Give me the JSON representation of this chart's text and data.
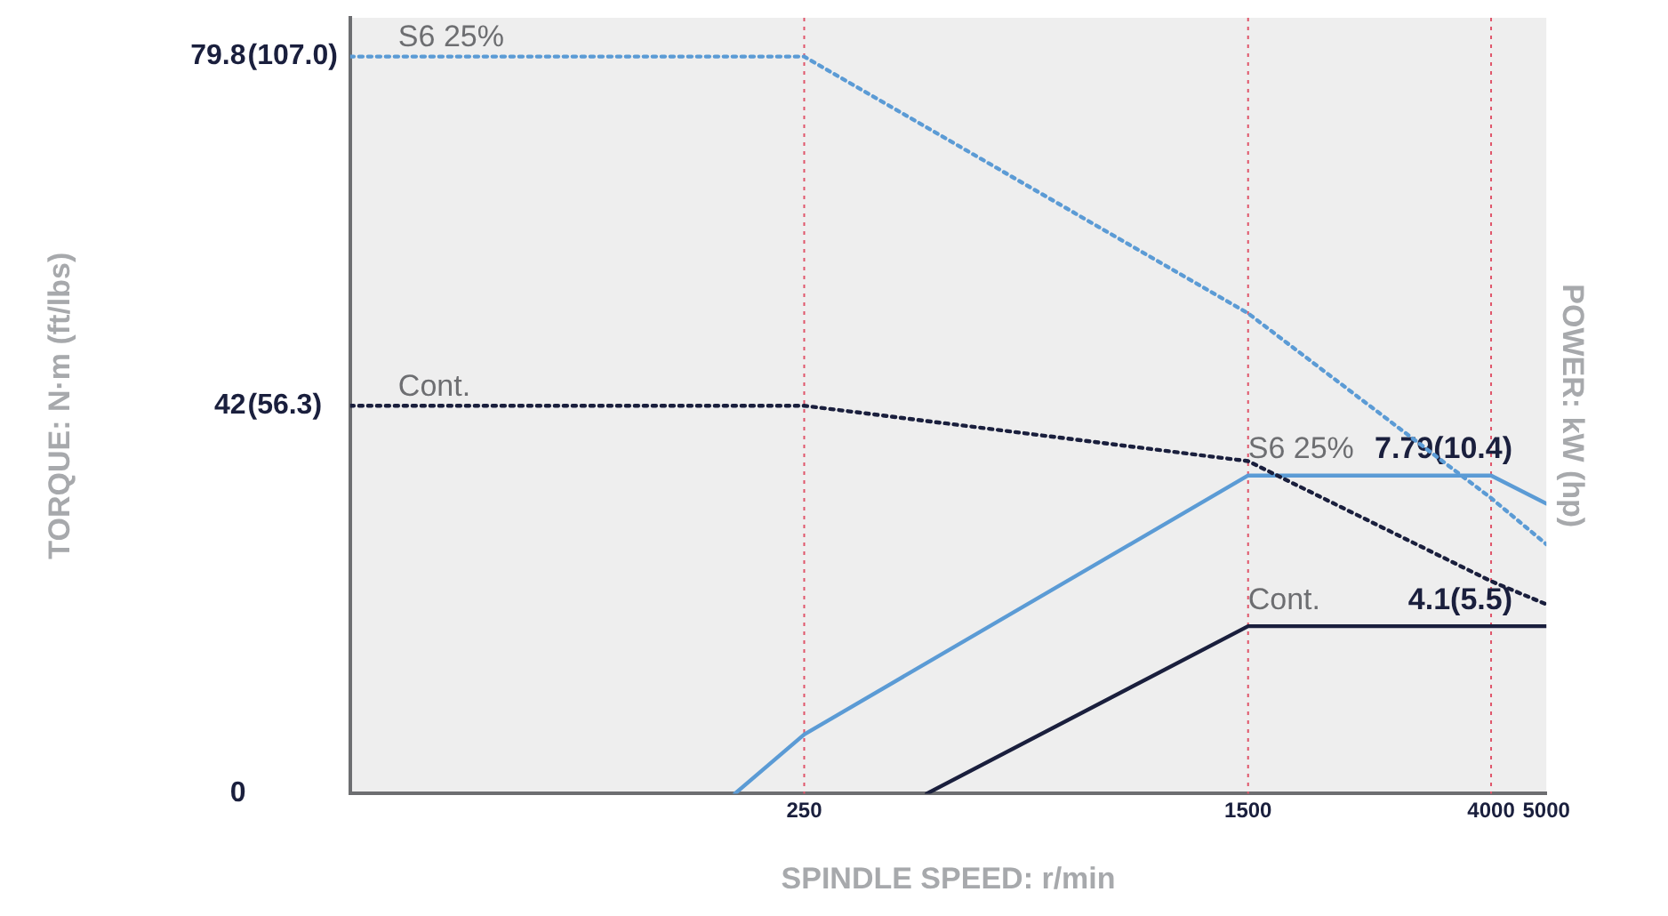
{
  "chart_data": {
    "type": "line",
    "xlabel": "SPINDLE SPEED: r/min",
    "ylabel": "TORQUE: N·m (ft/lbs)",
    "y2label": "POWER: kW (hp)",
    "log": "x",
    "xlim": [
      40,
      5000
    ],
    "xticks": [
      250,
      1500,
      4000,
      5000
    ],
    "ylim": [
      0,
      84
    ],
    "yticks": [
      0,
      42,
      79.8
    ],
    "y2lim": [
      0,
      19
    ],
    "annotations": [
      {
        "text": "(56.3)",
        "x": 40,
        "y": 42
      },
      {
        "text": "(107.0)",
        "x": 40,
        "y": 79.8
      }
    ],
    "series": [
      {
        "name": "S6 25%",
        "color": "#5b9bd5",
        "x": [
          40,
          250,
          1500,
          4000,
          5000
        ],
        "values": [
          79.8,
          79.8,
          52,
          32,
          27
        ],
        "line_style": "dotted"
      },
      {
        "name": "Cont.",
        "color": "#1a1f3d",
        "x": [
          40,
          250,
          1500,
          4000,
          5000
        ],
        "values": [
          42,
          42,
          36,
          23,
          20.5
        ],
        "line_style": "dotted"
      },
      {
        "name": "S6 25%",
        "color": "#5b9bd5",
        "axis": "y2",
        "x": [
          189,
          250,
          1500,
          4000,
          5000
        ],
        "values": [
          0,
          1.45,
          7.79,
          7.79,
          7.1
        ],
        "line_style": "solid",
        "value_labels": [
          null,
          null,
          null,
          "7.79(10.4)",
          null
        ]
      },
      {
        "name": "Cont.",
        "color": "#1a1f3d",
        "axis": "y2",
        "x": [
          410,
          1500,
          4000,
          5000
        ],
        "values": [
          0,
          4.1,
          4.1,
          4.1
        ],
        "line_style": "solid",
        "value_labels": [
          null,
          null,
          "4.1(5.5)",
          null
        ]
      }
    ],
    "ref_lines": [
      {
        "axis": "x",
        "value": 250,
        "color": "#e0556a",
        "line_style": "dotted"
      },
      {
        "axis": "x",
        "value": 1500,
        "color": "#e0556a",
        "line_style": "dotted"
      },
      {
        "axis": "x",
        "value": 4000,
        "color": "#e0556a",
        "line_style": "dotted"
      }
    ],
    "grid": false,
    "legend": false,
    "marker": "none"
  }
}
